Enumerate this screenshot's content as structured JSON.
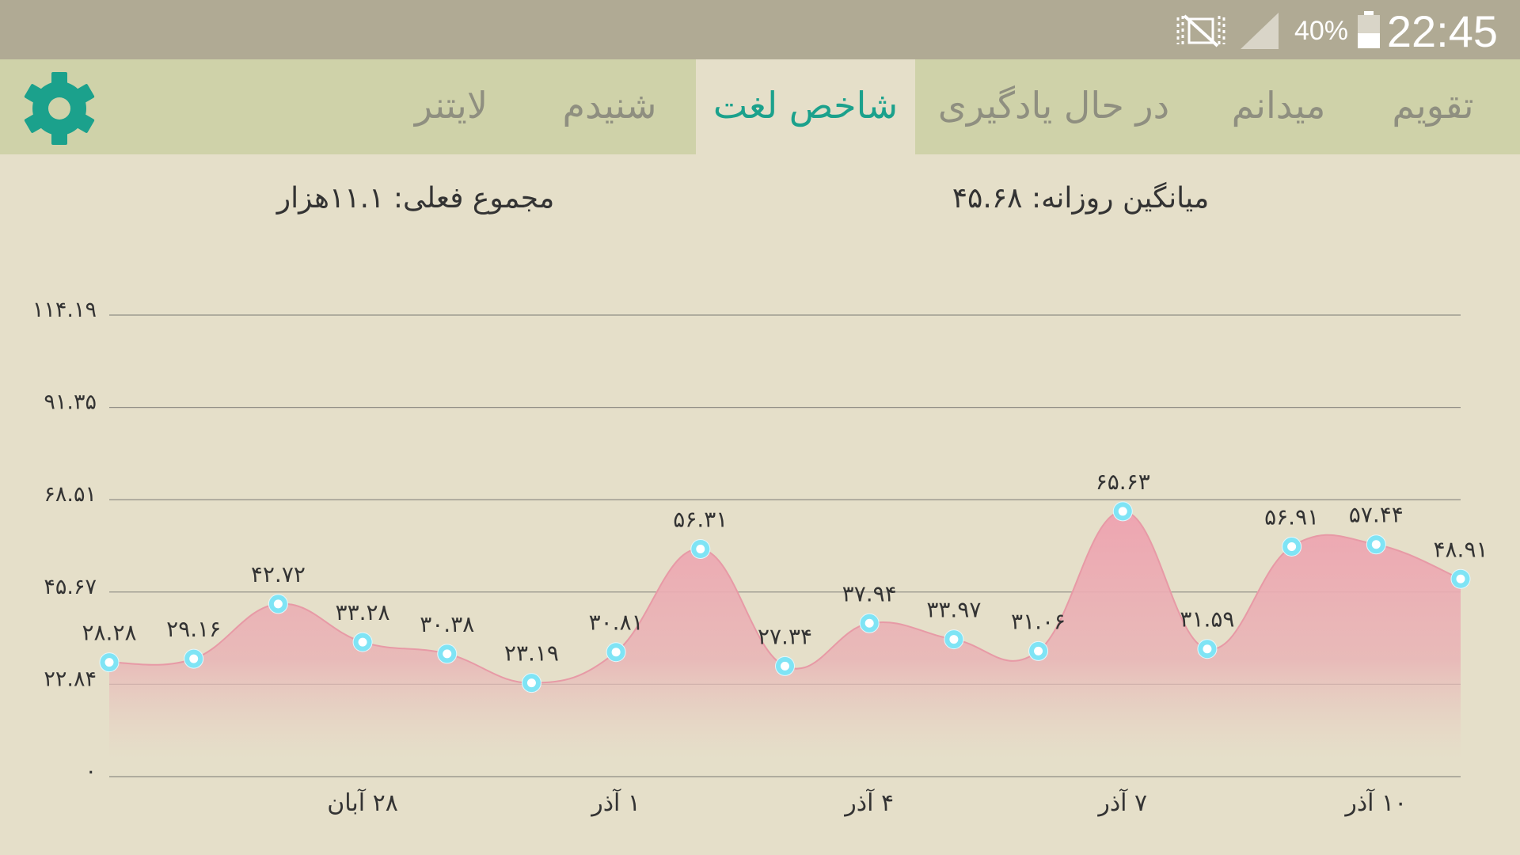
{
  "status_bar": {
    "time": "22:45",
    "battery": "40%",
    "icons": [
      "mute-icon",
      "signal-icon",
      "battery-icon"
    ]
  },
  "tabs": [
    {
      "label": "تقویم",
      "active": false
    },
    {
      "label": "میدانم",
      "active": false
    },
    {
      "label": "در حال یادگیری",
      "active": false
    },
    {
      "label": "شاخص لغت",
      "active": true
    },
    {
      "label": "شنیدم",
      "active": false
    },
    {
      "label": "لایتنر",
      "active": false
    }
  ],
  "settings_icon": "gear-icon",
  "stats": {
    "daily_average": "میانگین روزانه: ۴۵.۶۸",
    "current_total": "مجموع فعلی: ۱۱.۱هزار"
  },
  "colors": {
    "accent": "#1ba18c",
    "statusbar": "#b0aa94",
    "tabbar": "#cfd2a9",
    "background": "#e5dfc9",
    "area_fill": "#eea5b1",
    "point": "#7fe4f5"
  },
  "chart_data": {
    "type": "area",
    "ylim": [
      0,
      114.19
    ],
    "yticks": [
      0,
      22.84,
      45.67,
      68.51,
      91.35,
      114.19
    ],
    "ytick_labels": [
      "۰",
      "۲۲.۸۴",
      "۴۵.۶۷",
      "۶۸.۵۱",
      "۹۱.۳۵",
      "۱۱۴.۱۹"
    ],
    "x_labels": [
      {
        "index": 3,
        "label": "۲۸ آبان"
      },
      {
        "index": 6,
        "label": "۱ آذر"
      },
      {
        "index": 9,
        "label": "۴ آذر"
      },
      {
        "index": 12,
        "label": "۷ آذر"
      },
      {
        "index": 15,
        "label": "۱۰ آذر"
      }
    ],
    "values": [
      28.28,
      29.16,
      42.72,
      33.28,
      30.38,
      23.19,
      30.81,
      56.31,
      27.34,
      37.94,
      33.97,
      31.06,
      65.63,
      31.59,
      56.91,
      57.44,
      48.91
    ],
    "value_labels": [
      "۲۸.۲۸",
      "۲۹.۱۶",
      "۴۲.۷۲",
      "۳۳.۲۸",
      "۳۰.۳۸",
      "۲۳.۱۹",
      "۳۰.۸۱",
      "۵۶.۳۱",
      "۲۷.۳۴",
      "۳۷.۹۴",
      "۳۳.۹۷",
      "۳۱.۰۶",
      "۶۵.۶۳",
      "۳۱.۵۹",
      "۵۶.۹۱",
      "۵۷.۴۴",
      "۴۸.۹۱"
    ],
    "grid": true
  }
}
